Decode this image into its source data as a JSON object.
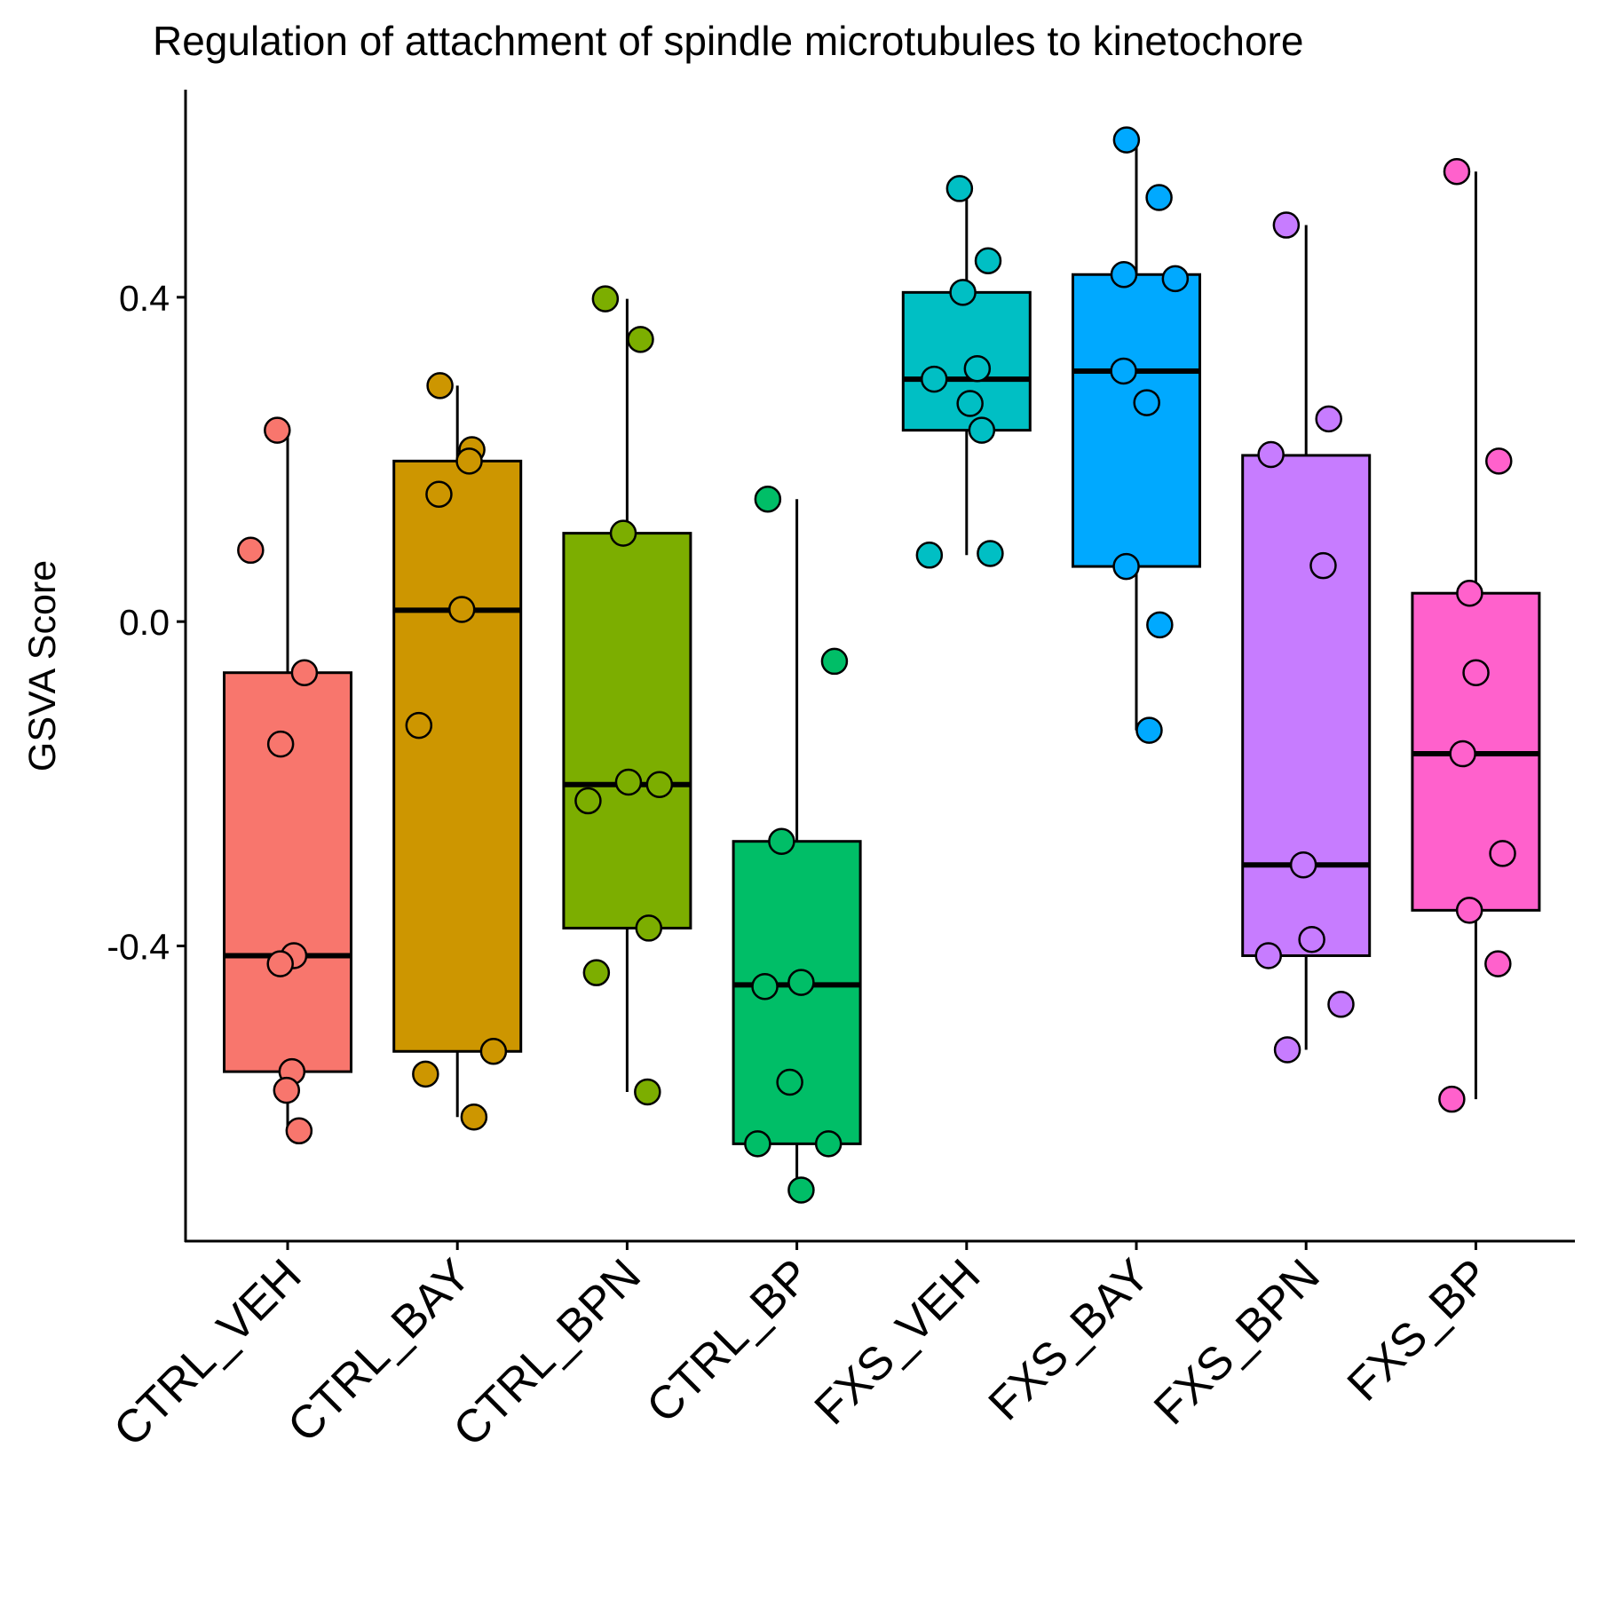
{
  "chart_data": {
    "type": "box",
    "title": "Regulation of attachment of spindle microtubules to kinetochore",
    "y_label": "GSVA Score",
    "categories": [
      "CTRL_VEH",
      "CTRL_BAY",
      "CTRL_BPN",
      "CTRL_BP",
      "FXS_VEH",
      "FXS_BAY",
      "FXS_BPN",
      "FXS_BP"
    ],
    "ylim": [
      -0.764,
      0.656
    ],
    "yticks": [
      {
        "value": 0.4,
        "label": "0.4"
      },
      {
        "value": 0.0,
        "label": "0.0"
      },
      {
        "value": -0.4,
        "label": "-0.4"
      }
    ],
    "groups": [
      {
        "color": "#F8766D",
        "whisker_low": -0.628,
        "q1": -0.555,
        "median": -0.412,
        "q3": -0.063,
        "whisker_high": 0.236,
        "values": [
          0.236,
          0.088,
          -0.063,
          -0.151,
          -0.412,
          -0.422,
          -0.555,
          -0.578,
          -0.628
        ]
      },
      {
        "color": "#CD9600",
        "whisker_low": -0.611,
        "q1": -0.53,
        "median": 0.014,
        "q3": 0.198,
        "whisker_high": 0.291,
        "values": [
          0.291,
          0.212,
          0.198,
          0.157,
          0.015,
          -0.128,
          -0.53,
          -0.558,
          -0.611
        ]
      },
      {
        "color": "#7CAE00",
        "whisker_low": -0.58,
        "q1": -0.378,
        "median": -0.201,
        "q3": 0.109,
        "whisker_high": 0.398,
        "values": [
          0.398,
          0.348,
          0.109,
          -0.198,
          -0.201,
          -0.221,
          -0.378,
          -0.433,
          -0.58
        ]
      },
      {
        "color": "#00BE67",
        "whisker_low": -0.701,
        "q1": -0.644,
        "median": -0.448,
        "q3": -0.271,
        "whisker_high": 0.151,
        "values": [
          0.151,
          -0.049,
          -0.271,
          -0.445,
          -0.45,
          -0.568,
          -0.644,
          -0.644,
          -0.701
        ]
      },
      {
        "color": "#00BFC4",
        "whisker_low": 0.082,
        "q1": 0.236,
        "median": 0.299,
        "q3": 0.406,
        "whisker_high": 0.534,
        "values": [
          0.534,
          0.445,
          0.406,
          0.312,
          0.299,
          0.269,
          0.236,
          0.082,
          0.084
        ]
      },
      {
        "color": "#00A9FF",
        "whisker_low": -0.134,
        "q1": 0.068,
        "median": 0.309,
        "q3": 0.428,
        "whisker_high": 0.594,
        "values": [
          0.594,
          0.523,
          0.428,
          0.423,
          0.309,
          0.27,
          0.068,
          -0.004,
          -0.134
        ]
      },
      {
        "color": "#C77CFF",
        "whisker_low": -0.528,
        "q1": -0.412,
        "median": -0.3,
        "q3": 0.205,
        "whisker_high": 0.489,
        "values": [
          0.489,
          0.25,
          0.206,
          0.069,
          -0.3,
          -0.392,
          -0.412,
          -0.472,
          -0.528
        ]
      },
      {
        "color": "#FF61CC",
        "whisker_low": -0.589,
        "q1": -0.356,
        "median": -0.163,
        "q3": 0.035,
        "whisker_high": 0.555,
        "values": [
          0.555,
          0.198,
          0.035,
          -0.063,
          -0.163,
          -0.286,
          -0.356,
          -0.422,
          -0.589
        ]
      }
    ]
  }
}
